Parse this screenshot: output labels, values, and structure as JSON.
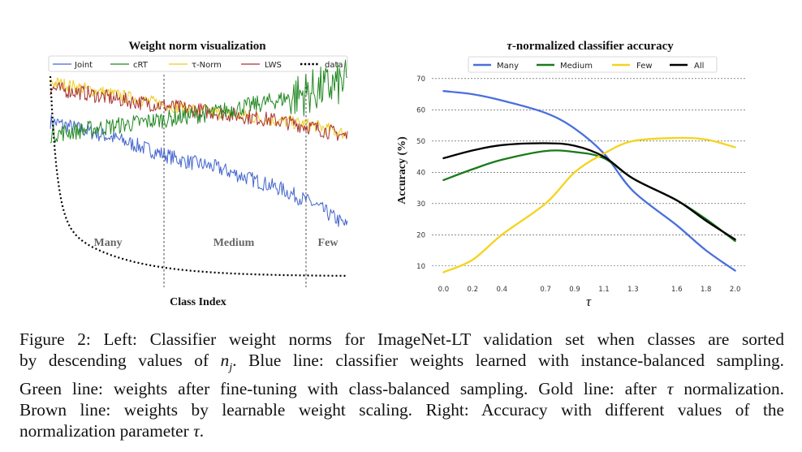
{
  "left_panel": {
    "title": "Weight norm visualization",
    "xlabel": "Class Index",
    "regions": [
      "Many",
      "Medium",
      "Few"
    ],
    "legend": [
      {
        "label": "Joint",
        "color": "#4466cc",
        "style": "solid"
      },
      {
        "label": "cRT",
        "color": "#228822",
        "style": "solid"
      },
      {
        "label": "τ-Norm",
        "color": "#eecc22",
        "style": "solid"
      },
      {
        "label": "LWS",
        "color": "#aa3333",
        "style": "solid"
      },
      {
        "label": "data",
        "color": "#000000",
        "style": "dotted"
      }
    ]
  },
  "right_panel": {
    "title_prefix": "τ",
    "title_rest": "-normalized classifier accuracy",
    "xlabel": "τ",
    "ylabel": "Accuracy (%)"
  },
  "chart_data": [
    {
      "type": "line",
      "title": "Weight norm visualization",
      "xlabel": "Class Index",
      "ylabel": "",
      "grid": false,
      "legend_position": "top",
      "annotations": [
        "Many",
        "Medium",
        "Few"
      ],
      "series": [
        {
          "name": "Joint",
          "color": "#4466cc",
          "trend": [
            0.78,
            0.74,
            0.7,
            0.65,
            0.6,
            0.57,
            0.52,
            0.47,
            0.4,
            0.3
          ]
        },
        {
          "name": "cRT",
          "color": "#228822",
          "trend": [
            0.72,
            0.74,
            0.76,
            0.78,
            0.8,
            0.82,
            0.85,
            0.88,
            0.92,
            0.96
          ]
        },
        {
          "name": "τ-Norm",
          "color": "#eecc22",
          "trend": [
            0.96,
            0.93,
            0.9,
            0.87,
            0.84,
            0.82,
            0.8,
            0.78,
            0.76,
            0.72
          ]
        },
        {
          "name": "LWS",
          "color": "#aa3333",
          "trend": [
            0.93,
            0.91,
            0.88,
            0.86,
            0.84,
            0.82,
            0.8,
            0.78,
            0.75,
            0.71
          ]
        },
        {
          "name": "data",
          "color": "#000000"
        }
      ]
    },
    {
      "type": "line",
      "title": "τ-normalized classifier accuracy",
      "xlabel": "τ",
      "ylabel": "Accuracy (%)",
      "x_tick_labels": [
        "0.0",
        "0.2",
        "0.4",
        "0.7",
        "0.9",
        "1.1",
        "1.3",
        "1.6",
        "1.8",
        "2.0"
      ],
      "x": [
        0.0,
        0.2,
        0.4,
        0.7,
        0.9,
        1.1,
        1.3,
        1.6,
        1.8,
        2.0
      ],
      "yticks": [
        10,
        20,
        30,
        40,
        50,
        60,
        70
      ],
      "xlim": [
        -0.08,
        2.08
      ],
      "ylim": [
        5,
        71
      ],
      "grid": true,
      "legend_position": "top",
      "series": [
        {
          "name": "Many",
          "color": "#4a6fdc",
          "values": [
            66,
            65,
            63,
            59,
            54,
            46,
            34,
            23,
            15,
            8.5
          ]
        },
        {
          "name": "Medium",
          "color": "#1a7a1a",
          "values": [
            37.5,
            41,
            44,
            46.8,
            46.5,
            44.5,
            38,
            31,
            25,
            18
          ]
        },
        {
          "name": "Few",
          "color": "#f5d31e",
          "values": [
            8,
            12,
            20,
            30,
            40,
            46,
            50,
            51,
            50.5,
            48
          ]
        },
        {
          "name": "All",
          "color": "#000000",
          "values": [
            44.5,
            47,
            48.7,
            49.3,
            48.5,
            45,
            38,
            31,
            24.5,
            18.5
          ]
        }
      ]
    }
  ],
  "caption": {
    "l1": "Figure 2:  Left:  Classifier weight norms for ImageNet-LT validation set when classes are sorted",
    "l2a": "by descending values of ",
    "l2var": "n",
    "l2sub": "j",
    "l2b": ".  Blue line:  classifier weights learned with instance-balanced sampling.",
    "l3a": "Green line: weights after fine-tuning with class-balanced sampling. Gold line: after ",
    "l3tau": "τ",
    "l3b": " normalization.",
    "l4": "Brown line:  weights by learnable weight scaling.  Right:  Accuracy with different values of the",
    "l5a": "normalization parameter ",
    "l5tau": "τ",
    "l5b": "."
  }
}
